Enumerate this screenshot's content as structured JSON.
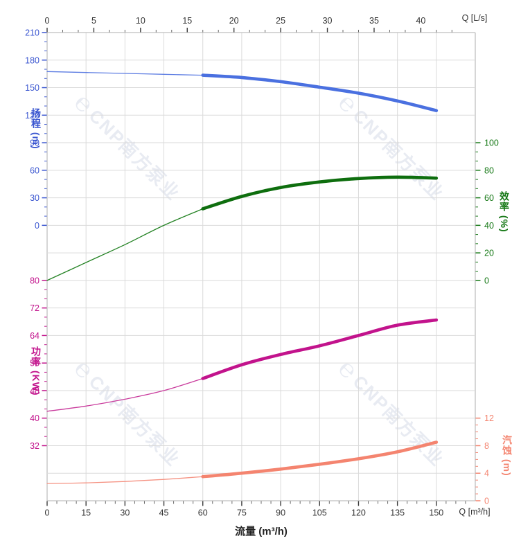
{
  "chart_data": {
    "type": "line",
    "title": "",
    "x": [
      0,
      15,
      30,
      45,
      60,
      75,
      90,
      105,
      120,
      135,
      150
    ],
    "x_unit": "m³/h",
    "bold_from_x": 60,
    "series": [
      {
        "name": "扬程",
        "unit": "m",
        "axis": "head",
        "color": "#4a70e0",
        "thin_color": "#5c7ce2",
        "values": [
          167.5,
          166.5,
          165.5,
          164.5,
          163.5,
          161,
          156.5,
          150.5,
          144,
          135.5,
          125
        ]
      },
      {
        "name": "效率",
        "unit": "%",
        "axis": "eff",
        "color": "#0e6e0e",
        "thin_color": "#238223",
        "values": [
          0,
          13,
          26,
          40,
          52,
          61,
          67.5,
          71.5,
          74,
          75,
          74.3
        ]
      },
      {
        "name": "功率",
        "unit": "KW",
        "axis": "power",
        "color": "#c2138c",
        "thin_color": "#c93a9c",
        "values": [
          42,
          43.5,
          45.5,
          48,
          51.5,
          55.5,
          58.5,
          61,
          64,
          67,
          68.5
        ]
      },
      {
        "name": "汽蚀",
        "unit": "m",
        "axis": "npsh",
        "color": "#f4846f",
        "thin_color": "#f59282",
        "values": [
          2.5,
          2.6,
          2.8,
          3.1,
          3.5,
          4,
          4.6,
          5.3,
          6.1,
          7.1,
          8.5
        ]
      }
    ],
    "axes": {
      "top": {
        "label": "Q [L/s]",
        "ticks": [
          0,
          5,
          10,
          15,
          20,
          25,
          30,
          35,
          40
        ],
        "max": 45.83,
        "color": "#333333"
      },
      "bottom": {
        "label": "Q [m³/h]",
        "title": "流量 (m³/h)",
        "ticks": [
          0,
          15,
          30,
          45,
          60,
          75,
          90,
          105,
          120,
          135,
          150
        ],
        "max": 165,
        "color": "#333333"
      },
      "head": {
        "label": "扬程 (m)",
        "ticks": [
          210,
          180,
          150,
          120,
          90,
          60,
          30,
          0
        ],
        "color": "#3a56d0"
      },
      "eff": {
        "label": "效率 (%)",
        "ticks": [
          100,
          80,
          60,
          40,
          20,
          0
        ],
        "color": "#157815"
      },
      "power": {
        "label": "功率 (KW)",
        "ticks": [
          80,
          72,
          64,
          56,
          48,
          40,
          32
        ],
        "color": "#c2138c"
      },
      "npsh": {
        "label": "汽蚀 (m)",
        "ticks": [
          12,
          8,
          4,
          0
        ],
        "color": "#f4846f"
      }
    },
    "grid": true,
    "legend_position": "none",
    "grid_color": "#dadada",
    "border_color": "#bfbfbf",
    "watermark": {
      "logo": "℮",
      "text": "CNP南方泵业"
    }
  }
}
